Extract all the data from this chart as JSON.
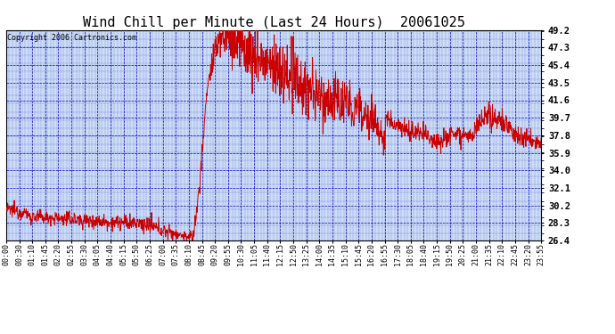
{
  "title": "Wind Chill per Minute (Last 24 Hours)  20061025",
  "copyright": "Copyright 2006 Cartronics.com",
  "ylabel_right": [
    "49.2",
    "47.3",
    "45.4",
    "43.5",
    "41.6",
    "39.7",
    "37.8",
    "35.9",
    "34.0",
    "32.1",
    "30.2",
    "28.3",
    "26.4"
  ],
  "yticks": [
    49.2,
    47.3,
    45.4,
    43.5,
    41.6,
    39.7,
    37.8,
    35.9,
    34.0,
    32.1,
    30.2,
    28.3,
    26.4
  ],
  "ylim": [
    26.4,
    49.2
  ],
  "line_color": "#cc0000",
  "bg_color": "#ffffff",
  "plot_bg_color": "#ccddf5",
  "grid_color": "#0000bb",
  "title_fontsize": 11,
  "copyright_fontsize": 6,
  "x_label_fontsize": 6,
  "y_label_fontsize": 7.5,
  "xtick_labels": [
    "00:00",
    "00:30",
    "01:10",
    "01:45",
    "02:20",
    "02:55",
    "03:30",
    "04:05",
    "04:40",
    "05:15",
    "05:50",
    "06:25",
    "07:00",
    "07:35",
    "08:10",
    "08:45",
    "09:20",
    "09:55",
    "10:30",
    "11:05",
    "11:40",
    "12:15",
    "12:50",
    "13:25",
    "14:00",
    "14:35",
    "15:10",
    "15:45",
    "16:20",
    "16:55",
    "17:30",
    "18:05",
    "18:40",
    "19:15",
    "19:50",
    "20:25",
    "21:00",
    "21:35",
    "22:10",
    "22:45",
    "23:20",
    "23:55"
  ]
}
